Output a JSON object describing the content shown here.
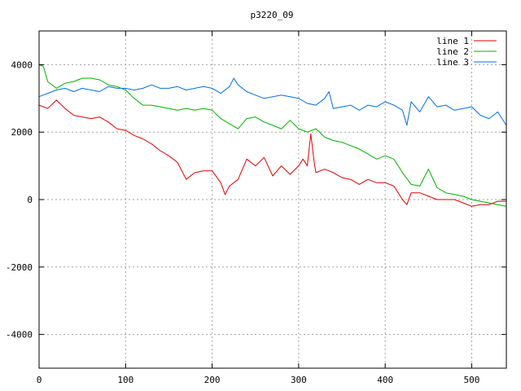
{
  "chart_data": {
    "type": "line",
    "title": "p3220_09",
    "xlabel": "",
    "ylabel": "",
    "xlim": [
      0,
      540
    ],
    "ylim": [
      -5000,
      5000
    ],
    "x_ticks": [
      0,
      100,
      200,
      300,
      400,
      500
    ],
    "y_ticks": [
      -4000,
      -2000,
      0,
      2000,
      4000
    ],
    "grid": true,
    "legend_position": "top-right",
    "series": [
      {
        "name": "line 1",
        "color": "#e00000",
        "x": [
          0,
          10,
          20,
          30,
          40,
          50,
          60,
          70,
          80,
          90,
          100,
          110,
          120,
          130,
          140,
          150,
          160,
          170,
          180,
          190,
          200,
          210,
          215,
          220,
          230,
          240,
          250,
          260,
          270,
          280,
          290,
          300,
          305,
          310,
          314,
          318,
          320,
          330,
          340,
          350,
          360,
          370,
          380,
          390,
          400,
          410,
          420,
          425,
          430,
          440,
          450,
          460,
          470,
          480,
          490,
          500,
          510,
          520,
          530,
          540
        ],
        "y": [
          2800,
          2700,
          2950,
          2700,
          2500,
          2450,
          2400,
          2450,
          2300,
          2100,
          2050,
          1900,
          1800,
          1650,
          1450,
          1300,
          1100,
          600,
          800,
          850,
          850,
          500,
          150,
          400,
          600,
          1200,
          1000,
          1250,
          700,
          1000,
          750,
          1000,
          1200,
          1000,
          1950,
          1100,
          800,
          900,
          800,
          650,
          600,
          450,
          600,
          500,
          500,
          400,
          0,
          -150,
          200,
          200,
          100,
          0,
          0,
          0,
          -100,
          -200,
          -150,
          -150,
          -50,
          -50
        ]
      },
      {
        "name": "line 2",
        "color": "#00b000",
        "x": [
          0,
          5,
          10,
          20,
          30,
          40,
          50,
          60,
          70,
          80,
          90,
          100,
          110,
          120,
          130,
          140,
          150,
          160,
          170,
          180,
          190,
          200,
          210,
          220,
          230,
          240,
          250,
          260,
          270,
          280,
          290,
          300,
          310,
          320,
          330,
          340,
          350,
          360,
          370,
          380,
          390,
          400,
          410,
          420,
          430,
          440,
          450,
          460,
          470,
          480,
          490,
          500,
          510,
          520,
          530,
          540
        ],
        "y": [
          4000,
          3950,
          3500,
          3300,
          3450,
          3500,
          3600,
          3600,
          3550,
          3400,
          3350,
          3250,
          3000,
          2800,
          2800,
          2750,
          2700,
          2650,
          2700,
          2650,
          2700,
          2650,
          2400,
          2250,
          2100,
          2400,
          2450,
          2300,
          2200,
          2100,
          2350,
          2100,
          2000,
          2100,
          1850,
          1750,
          1700,
          1600,
          1500,
          1350,
          1200,
          1300,
          1200,
          800,
          450,
          400,
          900,
          350,
          200,
          150,
          100,
          0,
          -50,
          -100,
          -150,
          -200
        ]
      },
      {
        "name": "line 3",
        "color": "#0070e0",
        "x": [
          0,
          10,
          20,
          30,
          40,
          50,
          60,
          70,
          80,
          90,
          100,
          110,
          120,
          130,
          140,
          150,
          160,
          170,
          180,
          190,
          200,
          210,
          220,
          225,
          230,
          240,
          250,
          260,
          270,
          280,
          290,
          300,
          310,
          320,
          330,
          335,
          340,
          350,
          360,
          370,
          380,
          390,
          400,
          410,
          420,
          425,
          430,
          440,
          450,
          460,
          470,
          480,
          490,
          500,
          510,
          520,
          530,
          540
        ],
        "y": [
          3050,
          3150,
          3250,
          3300,
          3200,
          3300,
          3250,
          3200,
          3350,
          3300,
          3300,
          3250,
          3300,
          3400,
          3300,
          3300,
          3350,
          3250,
          3300,
          3350,
          3300,
          3150,
          3350,
          3600,
          3400,
          3200,
          3100,
          3000,
          3050,
          3100,
          3050,
          3000,
          2850,
          2800,
          3000,
          3200,
          2700,
          2750,
          2800,
          2650,
          2800,
          2750,
          2900,
          2800,
          2650,
          2200,
          2900,
          2600,
          3050,
          2750,
          2800,
          2650,
          2700,
          2750,
          2500,
          2400,
          2600,
          2200
        ]
      }
    ]
  }
}
